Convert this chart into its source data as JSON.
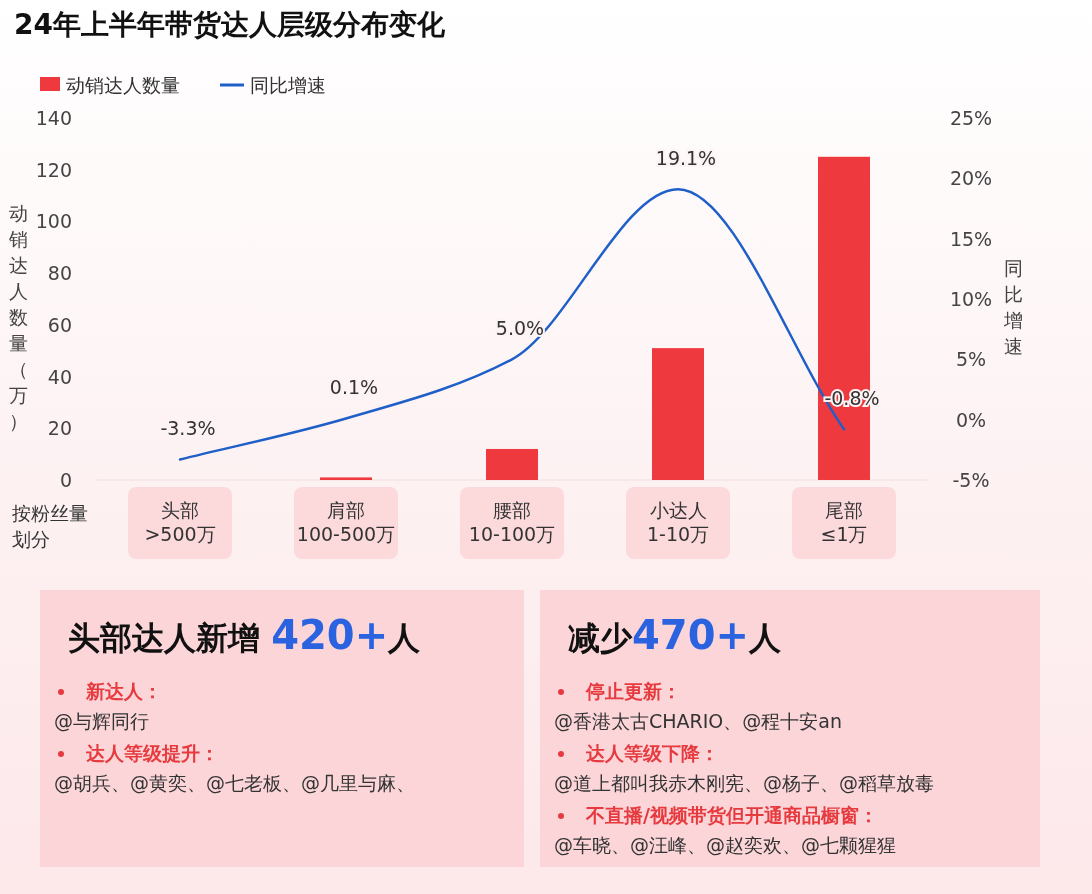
{
  "chart_data": [
    {
      "type": "bar",
      "title": "24年上半年带货达人层级分布变化",
      "categories": [
        "头部\n>500万",
        "肩部\n100-500万",
        "腰部\n10-100万",
        "小达人\n1-10万",
        "尾部\n≤1万"
      ],
      "xlabel": "按粉丝量划分",
      "ylabel": "动销达人数量（万）",
      "y2label": "同比增速",
      "series": [
        {
          "name": "动销达人数量",
          "type": "bar",
          "color": "#ee3a3f",
          "values": [
            0,
            1,
            12,
            51,
            125
          ]
        },
        {
          "name": "同比增速",
          "type": "line",
          "axis": "y2",
          "color": "#1f5fc8",
          "values": [
            -3.3,
            0.1,
            5.0,
            19.1,
            -0.8
          ],
          "value_labels": [
            "-3.3%",
            "0.1%",
            "5.0%",
            "19.1%",
            "-0.8%"
          ]
        }
      ],
      "ylim": [
        0,
        140
      ],
      "yticks": [
        0,
        20,
        40,
        60,
        80,
        100,
        120,
        140
      ],
      "y2lim": [
        -5,
        25
      ],
      "y2ticks": [
        {
          "value": -5,
          "label": "-5%"
        },
        {
          "value": 0,
          "label": "0%"
        },
        {
          "value": 5,
          "label": "5%"
        },
        {
          "value": 10,
          "label": "10%"
        },
        {
          "value": 15,
          "label": "15%"
        },
        {
          "value": 20,
          "label": "20%"
        },
        {
          "value": 25,
          "label": "25%"
        }
      ],
      "legend": "top left"
    },
    {
      "type": "other",
      "title": "头部达人新增 420+人",
      "annotations": [
        "新达人：",
        "@与辉同行",
        "达人等级提升：",
        "@胡兵、@黄奕、@七老板、@几里与麻、"
      ]
    },
    {
      "type": "other",
      "title": "减少470+人",
      "annotations": [
        "停止更新：",
        "@香港太古CHARIO、@程十安an",
        "达人等级下降：",
        "@道上都叫我赤木刚宪、@杨子、@稻草放毒",
        "不直播/视频带货但开通商品橱窗：",
        "@车晓、@汪峰、@赵奕欢、@七颗猩猩"
      ]
    }
  ]
}
